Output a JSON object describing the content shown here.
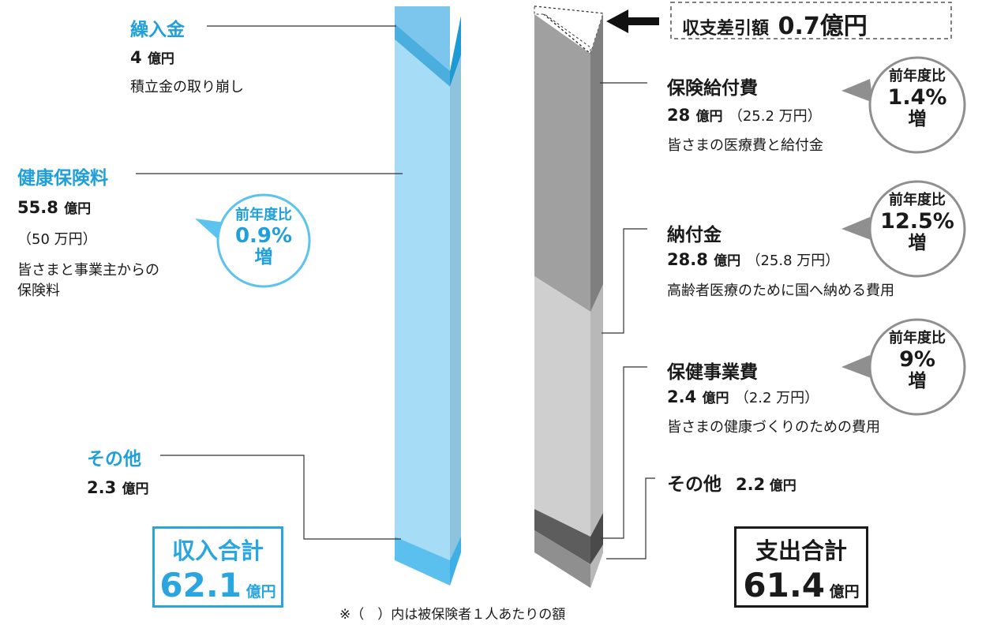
{
  "chart_data": {
    "type": "stacked-bar",
    "income": {
      "total_label": "収入合計",
      "total_value": "62.1",
      "total_unit": "億円",
      "items": [
        {
          "label": "繰入金",
          "amount": "4",
          "unit": "億円",
          "note": "積立金の取り崩し",
          "value": 4
        },
        {
          "label": "健康保険料",
          "amount": "55.8",
          "unit": "億円",
          "per_person": "（50 万円）",
          "note_lines": [
            "皆さまと事業主からの",
            "保険料"
          ],
          "value": 55.8,
          "change": {
            "line1": "前年度比",
            "line2": "0.9%",
            "line3": "増"
          }
        },
        {
          "label": "その他",
          "amount": "2.3",
          "unit": "億円",
          "value": 2.3
        }
      ]
    },
    "expense": {
      "total_label": "支出合計",
      "total_value": "61.4",
      "total_unit": "億円",
      "surplus": {
        "label": "収支差引額",
        "value": "0.7",
        "unit": "億円"
      },
      "items": [
        {
          "label": "保険給付費",
          "amount": "28",
          "unit": "億円",
          "per_person": "（25.2 万円）",
          "note": "皆さまの医療費と給付金",
          "value": 28,
          "change": {
            "line1": "前年度比",
            "line2": "1.4%",
            "line3": "増"
          }
        },
        {
          "label": "納付金",
          "amount": "28.8",
          "unit": "億円",
          "per_person": "（25.8 万円）",
          "note": "高齢者医療のために国へ納める費用",
          "value": 28.8,
          "change": {
            "line1": "前年度比",
            "line2": "12.5%",
            "line3": "増"
          }
        },
        {
          "label": "保健事業費",
          "amount": "2.4",
          "unit": "億円",
          "per_person": "（2.2 万円）",
          "note": "皆さまの健康づくりのための費用",
          "value": 2.4,
          "change": {
            "line1": "前年度比",
            "line2": "9%",
            "line3": "増"
          }
        },
        {
          "label": "その他",
          "amount": "2.2",
          "unit": "億円",
          "value": 2.2
        }
      ]
    },
    "footnote": "※（　）内は被保険者１人あたりの額",
    "colors": {
      "income_accent": "#1f9fdb",
      "income_bar": "#a6dcf5",
      "expense_dark": "#a0a0a0",
      "expense_light": "#cfcfcf"
    }
  }
}
